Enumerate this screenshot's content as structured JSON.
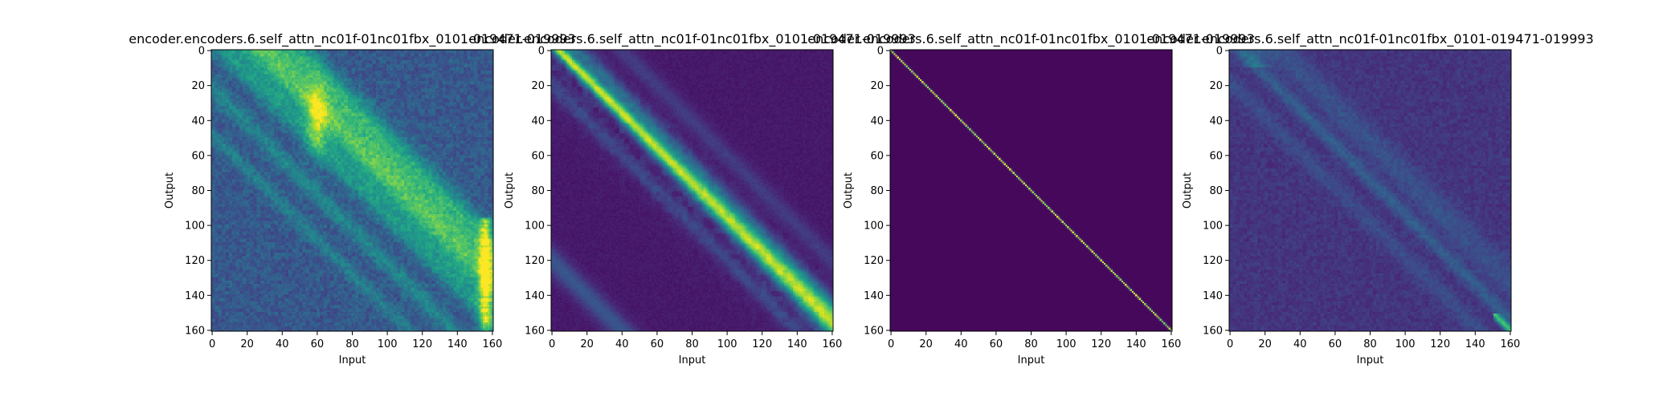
{
  "chart_data": [
    {
      "type": "heatmap",
      "title": "encoder.encoders.6.self_attn_nc01f-01nc01fbx_0101-019471-019993",
      "xlabel": "Input",
      "ylabel": "Output",
      "xlim": [
        0,
        161
      ],
      "ylim": [
        161,
        0
      ],
      "x_ticks": [
        0,
        20,
        40,
        60,
        80,
        100,
        120,
        140,
        160
      ],
      "y_ticks": [
        0,
        20,
        40,
        60,
        80,
        100,
        120,
        140,
        160
      ],
      "colormap": "viridis",
      "pattern": "broad diagonal attention band offset to the right, with secondary parallel bands and bright column near input 155-160 for outputs 100-160"
    },
    {
      "type": "heatmap",
      "title": "encoder.encoders.6.self_attn_nc01f-01nc01fbx_0101-019471-019993",
      "xlabel": "Input",
      "ylabel": "Output",
      "xlim": [
        0,
        161
      ],
      "ylim": [
        161,
        0
      ],
      "x_ticks": [
        0,
        20,
        40,
        60,
        80,
        100,
        120,
        140,
        160
      ],
      "y_ticks": [
        0,
        20,
        40,
        60,
        80,
        100,
        120,
        140,
        160
      ],
      "colormap": "viridis",
      "pattern": "strong main diagonal band slightly right of identity with faint off-diagonal bands"
    },
    {
      "type": "heatmap",
      "title": "encoder.encoders.6.self_attn_nc01f-01nc01fbx_0101-019471-019993",
      "xlabel": "Input",
      "ylabel": "Output",
      "xlim": [
        0,
        161
      ],
      "ylim": [
        161,
        0
      ],
      "x_ticks": [
        0,
        20,
        40,
        60,
        80,
        100,
        120,
        140,
        160
      ],
      "y_ticks": [
        0,
        20,
        40,
        60,
        80,
        100,
        120,
        140,
        160
      ],
      "colormap": "viridis",
      "pattern": "sharp identity diagonal"
    },
    {
      "type": "heatmap",
      "title": "encoder.encoders.6.self_attn_nc01f-01nc01fbx_0101-019471-019993",
      "xlabel": "Input",
      "ylabel": "Output",
      "xlim": [
        0,
        161
      ],
      "ylim": [
        161,
        0
      ],
      "x_ticks": [
        0,
        20,
        40,
        60,
        80,
        100,
        120,
        140,
        160
      ],
      "y_ticks": [
        0,
        20,
        40,
        60,
        80,
        100,
        120,
        140,
        160
      ],
      "colormap": "viridis",
      "pattern": "faint diffuse diagonal bands with bright point at bottom-right corner"
    }
  ],
  "colors": {
    "viridis_low": "#440154",
    "viridis_mid": "#21918c",
    "viridis_high": "#fde725"
  }
}
